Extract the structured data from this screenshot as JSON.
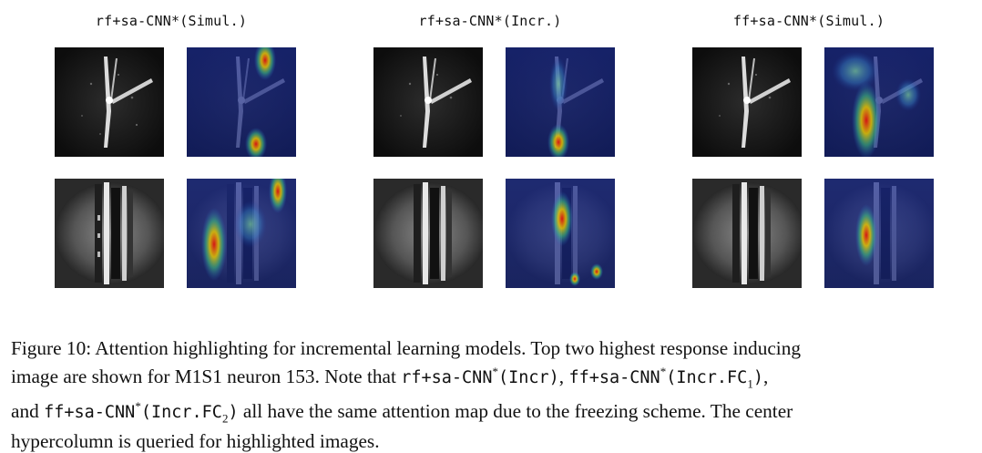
{
  "figure": {
    "panels": [
      {
        "title": "rf+sa-CNN*(Simul.)"
      },
      {
        "title": "rf+sa-CNN*(Incr.)"
      },
      {
        "title": "ff+sa-CNN*(Simul.)"
      }
    ]
  },
  "caption": {
    "line1": "Figure 10: Attention highlighting for incremental learning models. Top two highest response inducing",
    "line2a": "image are shown for M1S1 neuron 153. Note that ",
    "code1": "rf+sa-CNN",
    "code1_tail": "(Incr)",
    "sep1": ", ",
    "code2": "ff+sa-CNN",
    "code2_tail": "(Incr.FC",
    "sub1": "1",
    "close_paren": ")",
    "comma": ",",
    "line3a": "and ",
    "code3": "ff+sa-CNN",
    "code3_tail": "(Incr.FC",
    "sub2": "2",
    "line3b": " all have the same attention map due to the freezing scheme. The center",
    "line4": "hypercolumn is queried for highlighted images.",
    "star": "*"
  }
}
